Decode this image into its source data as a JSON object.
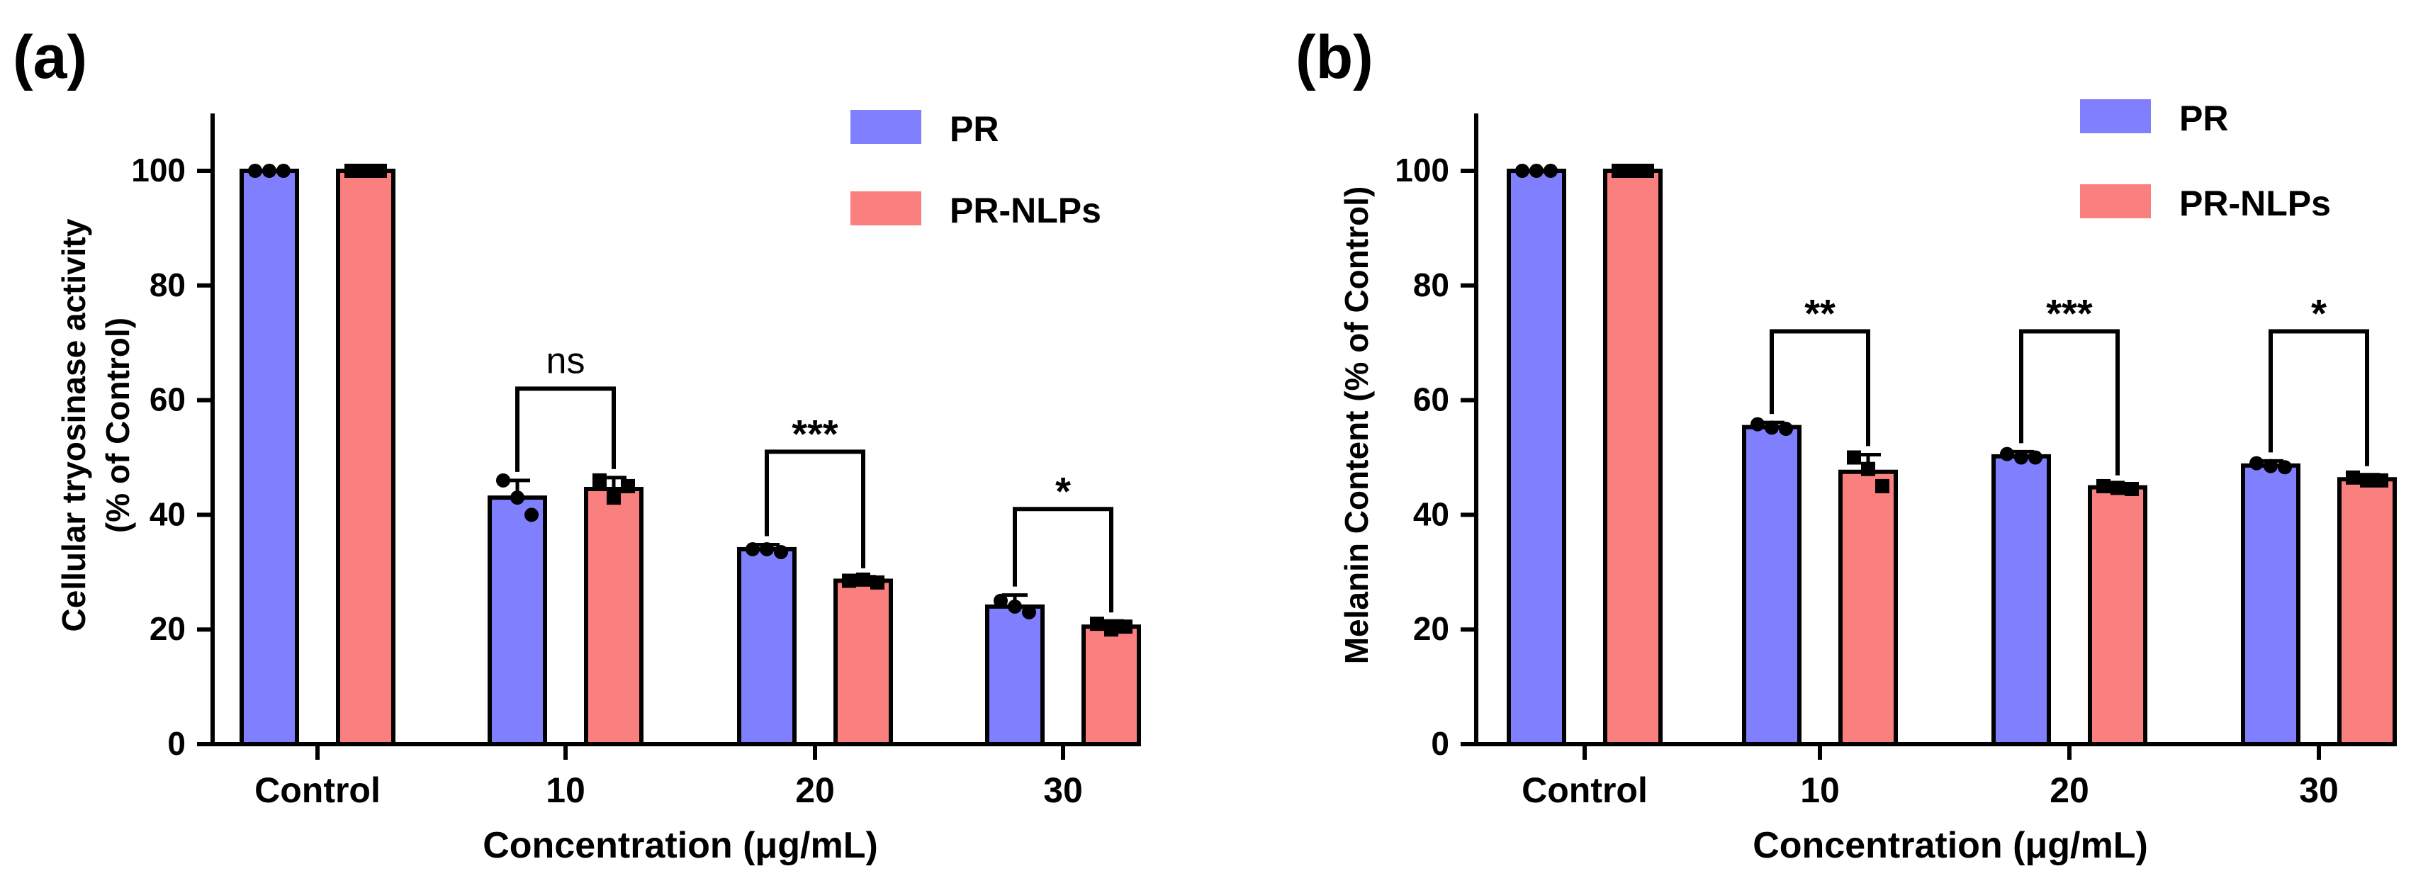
{
  "chart_data": [
    {
      "panel_label": "(a)",
      "type": "bar",
      "categories": [
        "Control",
        "10",
        "20",
        "30"
      ],
      "series": [
        {
          "name": "PR",
          "values": [
            100,
            43,
            34,
            24
          ],
          "errors": [
            0,
            3,
            0.8,
            2
          ],
          "points": [
            [
              100,
              100,
              100
            ],
            [
              46,
              43,
              40
            ],
            [
              34,
              34,
              33.5
            ],
            [
              25,
              24,
              23
            ]
          ]
        },
        {
          "name": "PR-NLPs",
          "values": [
            100,
            44.5,
            28.5,
            20.5
          ],
          "errors": [
            0,
            2,
            0.7,
            1
          ],
          "points": [
            [
              100,
              100,
              100
            ],
            [
              46,
              43,
              45
            ],
            [
              28.5,
              28.7,
              28.2
            ],
            [
              21,
              20,
              20.5
            ]
          ]
        }
      ],
      "xlabel": "Concentration (μg/mL)",
      "ylabel_line1": "Cellular tryosinase activity",
      "ylabel_line2": "(% of Control)",
      "ylim": [
        0,
        110
      ],
      "yticks": [
        0,
        20,
        40,
        60,
        80,
        100
      ],
      "legend_position": "top-right",
      "significance": [
        {
          "category_index": 1,
          "label": "ns",
          "bracket_top": 62
        },
        {
          "category_index": 2,
          "label": "***",
          "bracket_top": 51
        },
        {
          "category_index": 3,
          "label": "*",
          "bracket_top": 41
        }
      ]
    },
    {
      "panel_label": "(b)",
      "type": "bar",
      "categories": [
        "Control",
        "10",
        "20",
        "30"
      ],
      "series": [
        {
          "name": "PR",
          "values": [
            100,
            55.3,
            50.2,
            48.6
          ],
          "errors": [
            0,
            0.8,
            0.8,
            0.8
          ],
          "points": [
            [
              100,
              100,
              100
            ],
            [
              55.8,
              55.2,
              55
            ],
            [
              50.6,
              50,
              50
            ],
            [
              49,
              48.5,
              48.3
            ]
          ]
        },
        {
          "name": "PR-NLPs",
          "values": [
            100,
            47.5,
            44.8,
            46.2
          ],
          "errors": [
            0,
            3,
            0.6,
            0.8
          ],
          "points": [
            [
              100,
              100,
              100
            ],
            [
              50,
              48,
              45
            ],
            [
              45,
              44.7,
              44.5
            ],
            [
              46.5,
              46,
              46
            ]
          ]
        }
      ],
      "xlabel": "Concentration (μg/mL)",
      "ylabel_line1": "Melanin Content (% of Control)",
      "ylim": [
        0,
        110
      ],
      "yticks": [
        0,
        20,
        40,
        60,
        80,
        100
      ],
      "legend_position": "top-right",
      "significance": [
        {
          "category_index": 1,
          "label": "**",
          "bracket_top": 72
        },
        {
          "category_index": 2,
          "label": "***",
          "bracket_top": 72
        },
        {
          "category_index": 3,
          "label": "*",
          "bracket_top": 72
        }
      ]
    }
  ],
  "colors": {
    "PR": "#8080ff",
    "PR-NLPs": "#fa7f7f",
    "axis": "#000000"
  }
}
